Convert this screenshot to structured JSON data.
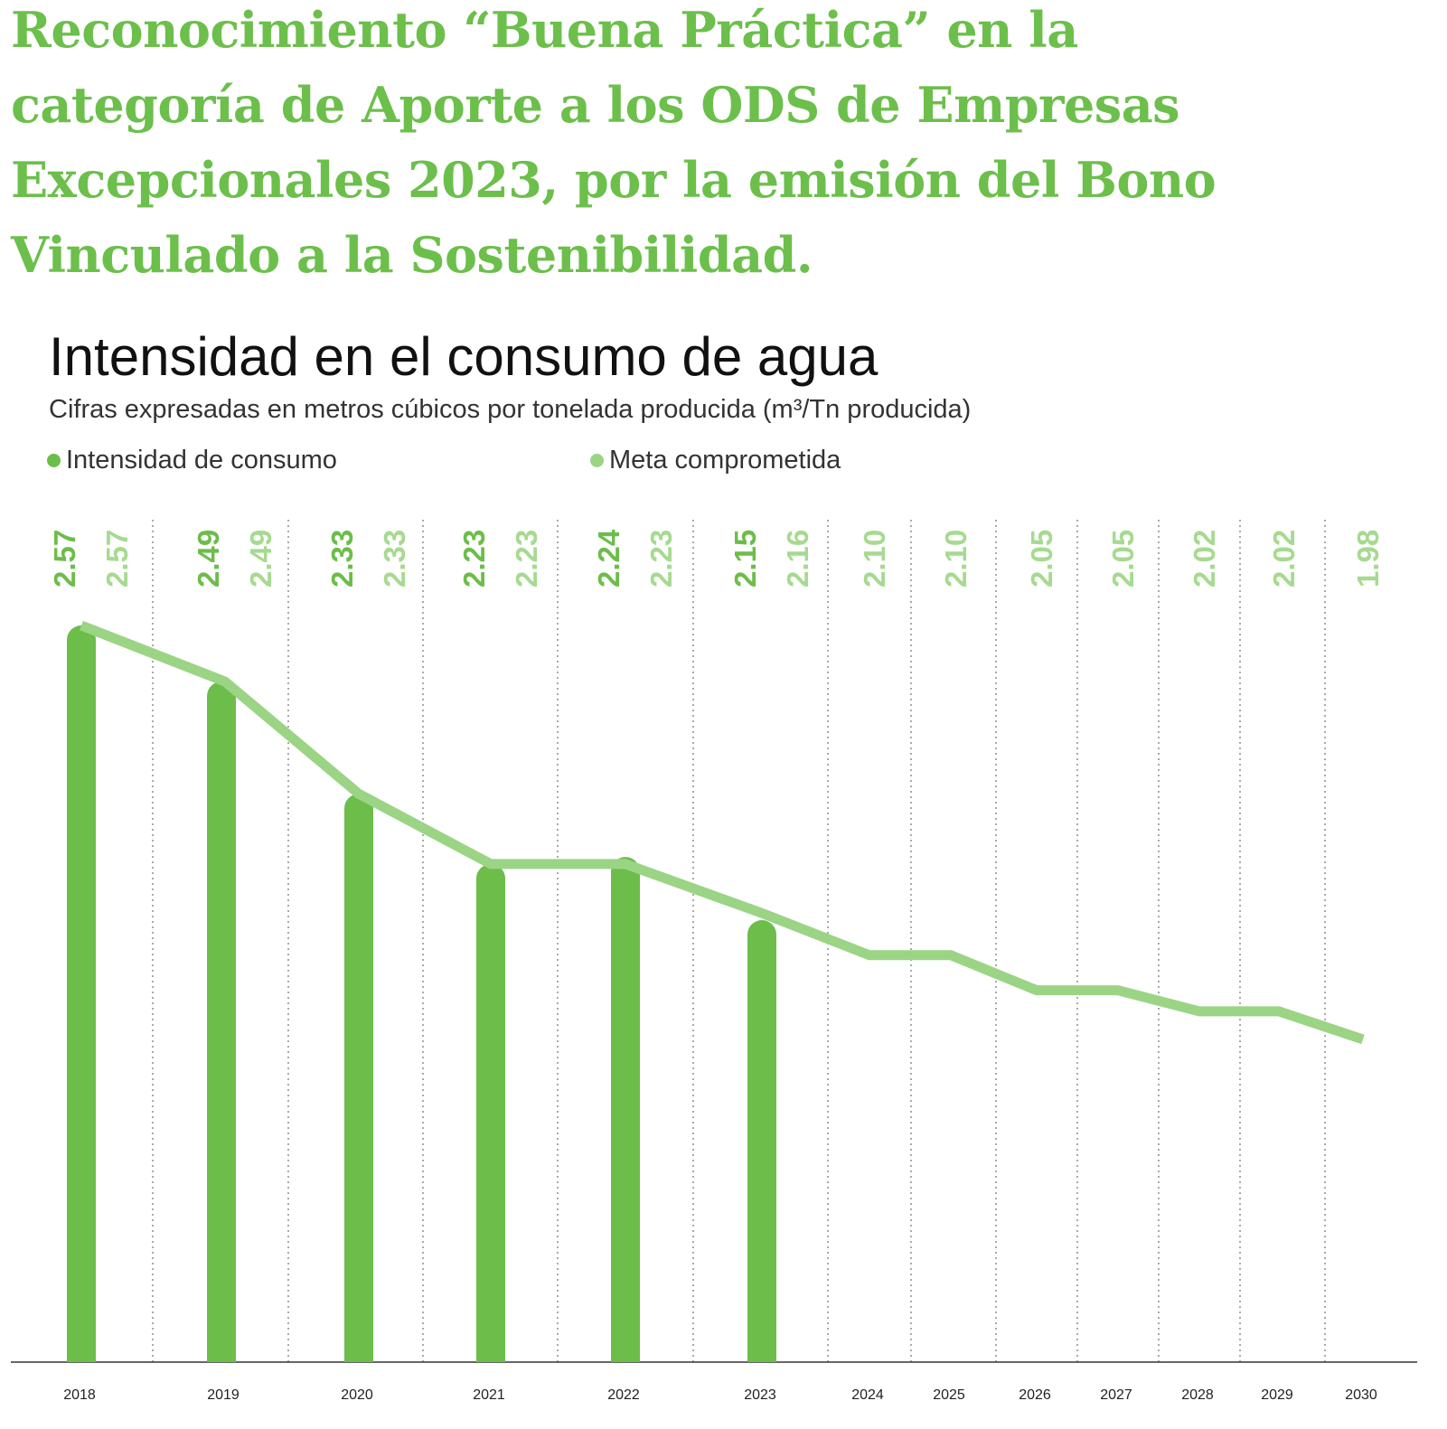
{
  "headline": [
    "Reconocimiento “Buena Práctica” en la",
    "categoría de Aporte a los ODS de Empresas",
    "Excepcionales 2023, por la emisión del Bono",
    "Vinculado a la Sostenibilidad."
  ],
  "colors": {
    "actual": "#6cbd4a",
    "target": "#9bd485",
    "target_label": "#a6da90",
    "grid": "#aaaaaa"
  },
  "chart_data": {
    "type": "bar",
    "title": "Intensidad en el consumo de agua",
    "subtitle": "Cifras expresadas en metros cúbicos por tonelada producida (m³/Tn producida)",
    "legend": [
      {
        "label": "Intensidad de consumo",
        "type": "bar"
      },
      {
        "label": "Meta comprometida",
        "type": "line"
      }
    ],
    "legend_position": "top-left",
    "categories": [
      "2018",
      "2019",
      "2020",
      "2021",
      "2022",
      "2023",
      "2024",
      "2025",
      "2026",
      "2027",
      "2028",
      "2029",
      "2030"
    ],
    "series": [
      {
        "name": "Intensidad de consumo",
        "type": "bar",
        "values": [
          2.57,
          2.49,
          2.33,
          2.23,
          2.24,
          2.15,
          null,
          null,
          null,
          null,
          null,
          null,
          null
        ],
        "labels": [
          "2.57",
          "2.49",
          "2.33",
          "2.23",
          "2.24",
          "2.15"
        ]
      },
      {
        "name": "Meta comprometida",
        "type": "line",
        "values": [
          2.57,
          2.49,
          2.33,
          2.23,
          2.23,
          2.16,
          2.1,
          2.1,
          2.05,
          2.05,
          2.02,
          2.02,
          1.98
        ],
        "labels": [
          "2.57",
          "2.49",
          "2.33",
          "2.23",
          "2.23",
          "2.16",
          "2.10",
          "2.10",
          "2.05",
          "2.05",
          "2.02",
          "2.02",
          "1.98"
        ]
      }
    ],
    "ylim": [
      1.52,
      2.6
    ],
    "grid": "vertical dotted separators"
  }
}
